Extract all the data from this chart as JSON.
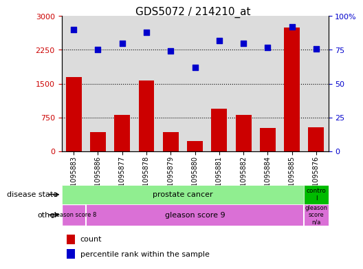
{
  "title": "GDS5072 / 214210_at",
  "samples": [
    "GSM1095883",
    "GSM1095886",
    "GSM1095877",
    "GSM1095878",
    "GSM1095879",
    "GSM1095880",
    "GSM1095881",
    "GSM1095882",
    "GSM1095884",
    "GSM1095885",
    "GSM1095876"
  ],
  "counts": [
    1650,
    420,
    810,
    1570,
    420,
    230,
    950,
    810,
    520,
    2750,
    540
  ],
  "percentiles": [
    90,
    75,
    80,
    88,
    74,
    62,
    82,
    80,
    77,
    92,
    76
  ],
  "ylim_left": [
    0,
    3000
  ],
  "ylim_right": [
    0,
    100
  ],
  "yticks_left": [
    0,
    750,
    1500,
    2250,
    3000
  ],
  "yticks_right": [
    0,
    25,
    50,
    75,
    100
  ],
  "bar_color": "#CC0000",
  "dot_color": "#0000CC",
  "prostate_color": "#90EE90",
  "control_color": "#00BB00",
  "gleason_color": "#DA70D6",
  "gleason_na_color": "#CC88CC",
  "plot_bg_color": "#DCDCDC",
  "legend_items": [
    "count",
    "percentile rank within the sample"
  ],
  "gleason8_samples": 1,
  "gleason9_samples": 9,
  "control_samples": 1
}
